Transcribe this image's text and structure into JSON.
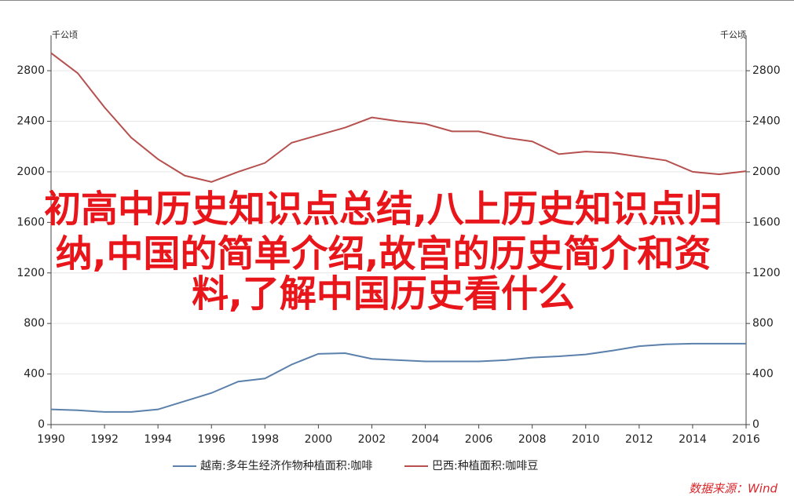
{
  "chart_data": {
    "type": "line",
    "y_unit": "千公顷",
    "y2_unit": "千公顷",
    "x": [
      1990,
      1991,
      1992,
      1993,
      1994,
      1995,
      1996,
      1997,
      1998,
      1999,
      2000,
      2001,
      2002,
      2003,
      2004,
      2005,
      2006,
      2007,
      2008,
      2009,
      2010,
      2011,
      2012,
      2013,
      2014,
      2015,
      2016
    ],
    "xlim": [
      1990,
      2016
    ],
    "xticks": [
      1990,
      1992,
      1994,
      1996,
      1998,
      2000,
      2002,
      2004,
      2006,
      2008,
      2010,
      2012,
      2014,
      2016
    ],
    "ylim": [
      0,
      3080
    ],
    "yticks": [
      0,
      400,
      800,
      1200,
      1600,
      2000,
      2400,
      2800
    ],
    "y2lim": [
      0,
      3080
    ],
    "y2ticks": [
      0,
      400,
      800,
      1200,
      1600,
      2000,
      2400,
      2800
    ],
    "grid": true,
    "legend": "bottom",
    "series": [
      {
        "name": "越南:多年生经济作物种植面积:咖啡",
        "color": "#5a80ab",
        "values": [
          120,
          113,
          100,
          100,
          120,
          185,
          250,
          340,
          365,
          475,
          560,
          565,
          520,
          510,
          500,
          500,
          500,
          510,
          530,
          540,
          555,
          585,
          620,
          635,
          640,
          640,
          640
        ]
      },
      {
        "name": "巴西:种植面积:咖啡豆",
        "color": "#b5504e",
        "values": [
          2940,
          2780,
          2510,
          2270,
          2100,
          1970,
          1920,
          2000,
          2070,
          2230,
          2290,
          2350,
          2430,
          2400,
          2380,
          2320,
          2320,
          2270,
          2240,
          2140,
          2160,
          2150,
          2120,
          2090,
          2000,
          1980,
          2005
        ]
      }
    ],
    "overlay_text": [
      "初高中历史知识点总结,八上历史知识点归",
      "纳,中国的简单介绍,故宫的历史简介和资",
      "料,了解中国历史看什么"
    ],
    "source": "数据来源：Wind"
  }
}
